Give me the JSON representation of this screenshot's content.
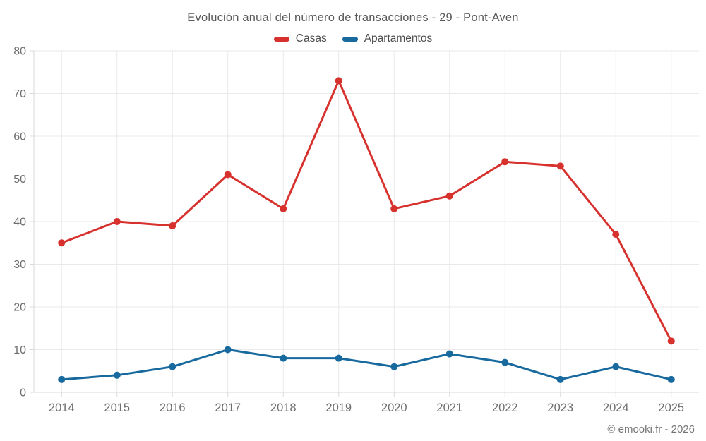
{
  "title": "Evolución anual del número de transacciones - 29 - Pont-Aven",
  "footer": "© emooki.fr - 2026",
  "style": {
    "grid_color": "#e9e9e9",
    "axis_color": "#d9d9d9",
    "tick_label_color": "#6e6e6e",
    "title_color": "#58595b",
    "legend_label_color": "#4d4d4d",
    "casas_color": "#d7312e",
    "apartamentos_color": "#17699e"
  },
  "chart_data": {
    "type": "line",
    "title": "Evolución anual del número de transacciones - 29 - Pont-Aven",
    "categories": [
      "2014",
      "2015",
      "2016",
      "2017",
      "2018",
      "2019",
      "2020",
      "2021",
      "2022",
      "2023",
      "2024",
      "2025"
    ],
    "series": [
      {
        "name": "Casas",
        "color": "#d7312e",
        "values": [
          35,
          40,
          39,
          51,
          43,
          73,
          43,
          46,
          54,
          53,
          37,
          12
        ]
      },
      {
        "name": "Apartamentos",
        "color": "#17699e",
        "values": [
          3,
          4,
          6,
          10,
          8,
          8,
          6,
          9,
          7,
          3,
          6,
          3
        ]
      }
    ],
    "xlabel": "",
    "ylabel": "",
    "ylim": [
      0,
      80
    ],
    "ytick_step": 10,
    "grid": true,
    "legend_position": "top",
    "marker": "circle"
  }
}
